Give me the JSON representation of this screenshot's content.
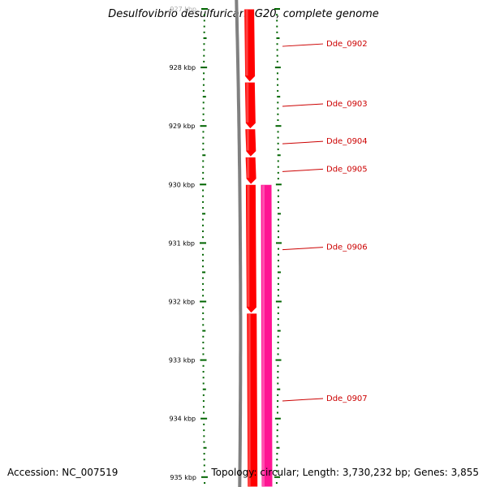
{
  "title": "Desulfovibrio desulfuricans G20, complete genome",
  "footer": {
    "accession": "Accession: NC_007519",
    "topology": "Topology: circular; Length: 3,730,232 bp; Genes: 3,855"
  },
  "ruler": {
    "unit": "kbp",
    "labels": [
      "927 kbp",
      "928 kbp",
      "929 kbp",
      "930 kbp",
      "931 kbp",
      "932 kbp",
      "933 kbp",
      "934 kbp",
      "935 kbp"
    ]
  },
  "genes": [
    {
      "name": "Dde_0902",
      "start_kbp": 927.0,
      "end_kbp": 928.25,
      "strand": "+",
      "track": "cds",
      "color": "#ff0000"
    },
    {
      "name": "Dde_0903",
      "start_kbp": 928.25,
      "end_kbp": 929.05,
      "strand": "+",
      "track": "cds",
      "color": "#ff0000"
    },
    {
      "name": "Dde_0904",
      "start_kbp": 929.05,
      "end_kbp": 929.53,
      "strand": "+",
      "track": "cds",
      "color": "#ff0000"
    },
    {
      "name": "Dde_0905",
      "start_kbp": 929.53,
      "end_kbp": 930.0,
      "strand": "+",
      "track": "cds",
      "color": "#ff0000"
    },
    {
      "name": "Dde_0906",
      "start_kbp": 930.0,
      "end_kbp": 932.2,
      "strand": "+",
      "track": "cds",
      "color": "#ff0000"
    },
    {
      "name": "Dde_0907",
      "start_kbp": 932.2,
      "end_kbp": 935.2,
      "strand": "+",
      "track": "cds",
      "color": "#ff0000"
    },
    {
      "name": "",
      "start_kbp": 930.0,
      "end_kbp": 935.2,
      "strand": "+",
      "track": "feature",
      "color": "#ff1493"
    }
  ],
  "colors": {
    "backbone": "#808080",
    "tick": "#006400",
    "gene_label": "#cc0000"
  }
}
